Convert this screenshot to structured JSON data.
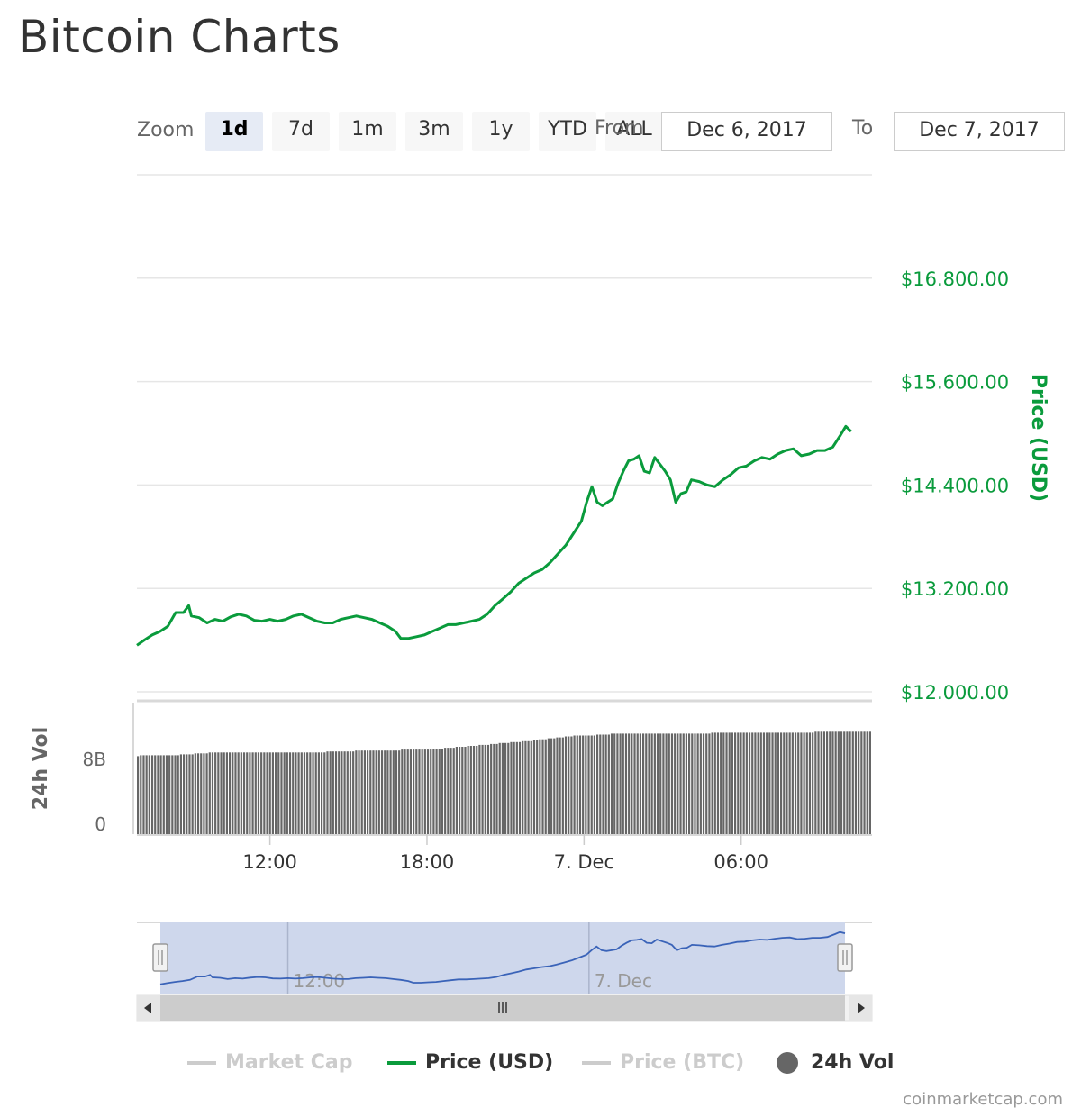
{
  "page": {
    "title": "Bitcoin Charts",
    "credits": "coinmarketcap.com"
  },
  "zoom": {
    "label": "Zoom",
    "buttons": [
      "1d",
      "7d",
      "1m",
      "3m",
      "1y",
      "YTD",
      "ALL"
    ],
    "active": "1d"
  },
  "range": {
    "from_label": "From",
    "from_value": "Dec 6, 2017",
    "to_label": "To",
    "to_value": "Dec 7, 2017"
  },
  "colors": {
    "price": "#0a9b3c",
    "volume": "#666666",
    "navigator_fill": "#ced7ec",
    "navigator_line": "#3a63b8",
    "grid": "#e6e6e6",
    "inactive": "#cccccc"
  },
  "legend": [
    {
      "label": "Market Cap",
      "active": false,
      "marker": "line"
    },
    {
      "label": "Price (USD)",
      "active": true,
      "marker": "line"
    },
    {
      "label": "Price (BTC)",
      "active": false,
      "marker": "line"
    },
    {
      "label": "24h Vol",
      "active": true,
      "marker": "circle"
    }
  ],
  "chart_data": {
    "type": "line",
    "price_axis": {
      "title": "Price (USD)",
      "ticks": [
        12000,
        13200,
        14400,
        15600,
        16800
      ],
      "tick_labels": [
        "$12.000.00",
        "$13.200.00",
        "$14.400.00",
        "$15.600.00",
        "$16.800.00"
      ],
      "range": [
        12000,
        18000
      ]
    },
    "volume_axis": {
      "title": "24h Vol",
      "tick_labels": [
        "0",
        "8B"
      ],
      "ticks": [
        0,
        8000000000
      ],
      "range": [
        0,
        14000000000
      ]
    },
    "x_axis": {
      "start": "2017-12-06T06:55",
      "end": "2017-12-07T08:55",
      "tick_labels": [
        "12:00",
        "18:00",
        "7. Dec",
        "06:00"
      ],
      "tick_hours": [
        12,
        18,
        24,
        30
      ]
    },
    "navigator_labels": [
      "12:00",
      "7. Dec"
    ],
    "series": [
      {
        "name": "Price (USD)",
        "type": "line",
        "points": [
          [
            6.92,
            12540
          ],
          [
            7.2,
            12600
          ],
          [
            7.5,
            12660
          ],
          [
            7.8,
            12700
          ],
          [
            8.1,
            12760
          ],
          [
            8.4,
            12920
          ],
          [
            8.7,
            12920
          ],
          [
            8.9,
            13000
          ],
          [
            9.0,
            12880
          ],
          [
            9.3,
            12860
          ],
          [
            9.6,
            12800
          ],
          [
            9.9,
            12840
          ],
          [
            10.2,
            12820
          ],
          [
            10.5,
            12870
          ],
          [
            10.8,
            12900
          ],
          [
            11.1,
            12880
          ],
          [
            11.4,
            12830
          ],
          [
            11.7,
            12820
          ],
          [
            12.0,
            12840
          ],
          [
            12.3,
            12820
          ],
          [
            12.6,
            12840
          ],
          [
            12.9,
            12880
          ],
          [
            13.2,
            12900
          ],
          [
            13.5,
            12860
          ],
          [
            13.8,
            12820
          ],
          [
            14.1,
            12800
          ],
          [
            14.4,
            12800
          ],
          [
            14.7,
            12840
          ],
          [
            15.0,
            12860
          ],
          [
            15.3,
            12880
          ],
          [
            15.6,
            12860
          ],
          [
            15.9,
            12840
          ],
          [
            16.2,
            12800
          ],
          [
            16.5,
            12760
          ],
          [
            16.8,
            12700
          ],
          [
            17.0,
            12620
          ],
          [
            17.3,
            12620
          ],
          [
            17.6,
            12640
          ],
          [
            17.9,
            12660
          ],
          [
            18.2,
            12700
          ],
          [
            18.5,
            12740
          ],
          [
            18.8,
            12780
          ],
          [
            19.1,
            12780
          ],
          [
            19.4,
            12800
          ],
          [
            19.7,
            12820
          ],
          [
            20.0,
            12840
          ],
          [
            20.3,
            12900
          ],
          [
            20.6,
            13000
          ],
          [
            20.9,
            13080
          ],
          [
            21.2,
            13160
          ],
          [
            21.5,
            13260
          ],
          [
            21.8,
            13320
          ],
          [
            22.1,
            13380
          ],
          [
            22.4,
            13420
          ],
          [
            22.7,
            13500
          ],
          [
            23.0,
            13600
          ],
          [
            23.3,
            13700
          ],
          [
            23.6,
            13840
          ],
          [
            23.9,
            13980
          ],
          [
            24.1,
            14200
          ],
          [
            24.3,
            14380
          ],
          [
            24.5,
            14200
          ],
          [
            24.7,
            14160
          ],
          [
            24.9,
            14200
          ],
          [
            25.1,
            14240
          ],
          [
            25.3,
            14420
          ],
          [
            25.5,
            14560
          ],
          [
            25.7,
            14680
          ],
          [
            25.9,
            14700
          ],
          [
            26.1,
            14740
          ],
          [
            26.3,
            14560
          ],
          [
            26.5,
            14540
          ],
          [
            26.7,
            14720
          ],
          [
            26.9,
            14640
          ],
          [
            27.1,
            14560
          ],
          [
            27.3,
            14460
          ],
          [
            27.5,
            14200
          ],
          [
            27.7,
            14300
          ],
          [
            27.9,
            14320
          ],
          [
            28.1,
            14460
          ],
          [
            28.4,
            14440
          ],
          [
            28.7,
            14400
          ],
          [
            29.0,
            14380
          ],
          [
            29.3,
            14460
          ],
          [
            29.6,
            14520
          ],
          [
            29.9,
            14600
          ],
          [
            30.2,
            14620
          ],
          [
            30.5,
            14680
          ],
          [
            30.8,
            14720
          ],
          [
            31.1,
            14700
          ],
          [
            31.4,
            14760
          ],
          [
            31.7,
            14800
          ],
          [
            32.0,
            14820
          ],
          [
            32.3,
            14740
          ],
          [
            32.6,
            14760
          ],
          [
            32.9,
            14800
          ],
          [
            33.2,
            14800
          ],
          [
            33.5,
            14840
          ],
          [
            33.8,
            14980
          ],
          [
            34.0,
            15080
          ],
          [
            34.2,
            15020
          ]
        ]
      },
      {
        "name": "24h Vol",
        "type": "column",
        "start_hour": 6.92,
        "step_hours": 0.1,
        "values": [
          8.3,
          8.4,
          8.4,
          8.4,
          8.4,
          8.4,
          8.4,
          8.4,
          8.4,
          8.4,
          8.4,
          8.4,
          8.4,
          8.4,
          8.4,
          8.5,
          8.5,
          8.5,
          8.5,
          8.5,
          8.6,
          8.6,
          8.6,
          8.6,
          8.6,
          8.7,
          8.7,
          8.7,
          8.7,
          8.7,
          8.7,
          8.7,
          8.7,
          8.7,
          8.7,
          8.7,
          8.7,
          8.7,
          8.7,
          8.7,
          8.7,
          8.7,
          8.7,
          8.7,
          8.7,
          8.7,
          8.7,
          8.7,
          8.7,
          8.7,
          8.7,
          8.7,
          8.7,
          8.7,
          8.7,
          8.7,
          8.7,
          8.7,
          8.7,
          8.7,
          8.7,
          8.7,
          8.7,
          8.7,
          8.7,
          8.7,
          8.8,
          8.8,
          8.8,
          8.8,
          8.8,
          8.8,
          8.8,
          8.8,
          8.8,
          8.8,
          8.9,
          8.9,
          8.9,
          8.9,
          8.9,
          8.9,
          8.9,
          8.9,
          8.9,
          8.9,
          8.9,
          8.9,
          8.9,
          8.9,
          8.9,
          8.9,
          9.0,
          9.0,
          9.0,
          9.0,
          9.0,
          9.0,
          9.0,
          9.0,
          9.0,
          9.0,
          9.1,
          9.1,
          9.1,
          9.1,
          9.1,
          9.2,
          9.2,
          9.2,
          9.2,
          9.3,
          9.3,
          9.3,
          9.3,
          9.4,
          9.4,
          9.4,
          9.4,
          9.5,
          9.5,
          9.5,
          9.5,
          9.6,
          9.6,
          9.6,
          9.7,
          9.7,
          9.7,
          9.7,
          9.8,
          9.8,
          9.8,
          9.8,
          9.9,
          9.9,
          9.9,
          9.9,
          10.0,
          10.0,
          10.1,
          10.1,
          10.1,
          10.2,
          10.2,
          10.2,
          10.3,
          10.3,
          10.3,
          10.4,
          10.4,
          10.4,
          10.5,
          10.5,
          10.5,
          10.5,
          10.5,
          10.5,
          10.5,
          10.5,
          10.6,
          10.6,
          10.6,
          10.6,
          10.6,
          10.7,
          10.7,
          10.7,
          10.7,
          10.7,
          10.7,
          10.7,
          10.7,
          10.7,
          10.7,
          10.7,
          10.7,
          10.7,
          10.7,
          10.7,
          10.7,
          10.7,
          10.7,
          10.7,
          10.7,
          10.7,
          10.7,
          10.7,
          10.7,
          10.7,
          10.7,
          10.7,
          10.7,
          10.7,
          10.7,
          10.7,
          10.7,
          10.7,
          10.7,
          10.7,
          10.8,
          10.8,
          10.8,
          10.8,
          10.8,
          10.8,
          10.8,
          10.8,
          10.8,
          10.8,
          10.8,
          10.8,
          10.8,
          10.8,
          10.8,
          10.8,
          10.8,
          10.8,
          10.8,
          10.8,
          10.8,
          10.8,
          10.8,
          10.8,
          10.8,
          10.8,
          10.8,
          10.8,
          10.8,
          10.8,
          10.8,
          10.8,
          10.8,
          10.8,
          10.8,
          10.8,
          10.9,
          10.9,
          10.9,
          10.9,
          10.9,
          10.9,
          10.9,
          10.9,
          10.9,
          10.9,
          10.9,
          10.9,
          10.9,
          10.9,
          10.9,
          10.9,
          10.9,
          10.9,
          10.9,
          10.9
        ],
        "unit": "billions USD"
      }
    ],
    "grid": true,
    "legend_position": "bottom"
  }
}
